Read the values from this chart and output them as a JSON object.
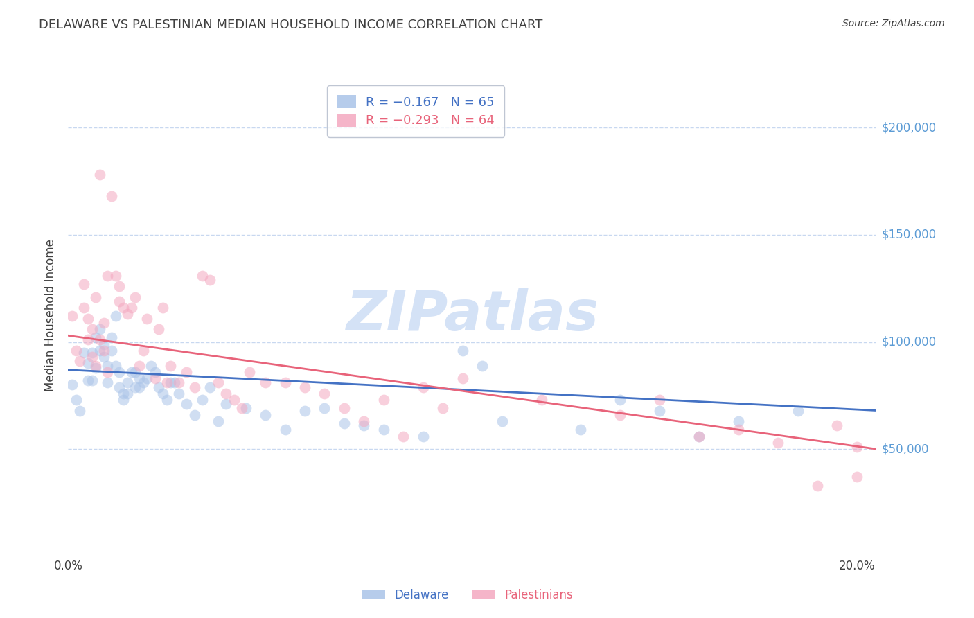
{
  "title": "DELAWARE VS PALESTINIAN MEDIAN HOUSEHOLD INCOME CORRELATION CHART",
  "source": "Source: ZipAtlas.com",
  "ylabel": "Median Household Income",
  "ytick_labels": [
    "$50,000",
    "$100,000",
    "$150,000",
    "$200,000"
  ],
  "ytick_values": [
    50000,
    100000,
    150000,
    200000
  ],
  "ylim": [
    0,
    225000
  ],
  "xlim": [
    0.0,
    0.205
  ],
  "legend_blue_R": "R = −0.167",
  "legend_blue_N": "N = 65",
  "legend_pink_R": "R = −0.293",
  "legend_pink_N": "N = 64",
  "blue_color": "#aac4e8",
  "pink_color": "#f4a8c0",
  "blue_line_color": "#4472c4",
  "pink_line_color": "#e8637a",
  "watermark_color": "#d0dff5",
  "title_color": "#404040",
  "ytick_color": "#5b9bd5",
  "xtick_color": "#404040",
  "blue_scatter": [
    [
      0.001,
      80000
    ],
    [
      0.002,
      73000
    ],
    [
      0.003,
      68000
    ],
    [
      0.004,
      95000
    ],
    [
      0.005,
      90000
    ],
    [
      0.005,
      82000
    ],
    [
      0.006,
      95000
    ],
    [
      0.006,
      82000
    ],
    [
      0.007,
      88000
    ],
    [
      0.007,
      102000
    ],
    [
      0.008,
      96000
    ],
    [
      0.008,
      106000
    ],
    [
      0.009,
      99000
    ],
    [
      0.009,
      93000
    ],
    [
      0.01,
      89000
    ],
    [
      0.01,
      81000
    ],
    [
      0.011,
      96000
    ],
    [
      0.011,
      102000
    ],
    [
      0.012,
      112000
    ],
    [
      0.012,
      89000
    ],
    [
      0.013,
      79000
    ],
    [
      0.013,
      86000
    ],
    [
      0.014,
      76000
    ],
    [
      0.014,
      73000
    ],
    [
      0.015,
      81000
    ],
    [
      0.015,
      76000
    ],
    [
      0.016,
      86000
    ],
    [
      0.017,
      86000
    ],
    [
      0.017,
      79000
    ],
    [
      0.018,
      83000
    ],
    [
      0.018,
      79000
    ],
    [
      0.019,
      81000
    ],
    [
      0.02,
      83000
    ],
    [
      0.021,
      89000
    ],
    [
      0.022,
      86000
    ],
    [
      0.023,
      79000
    ],
    [
      0.024,
      76000
    ],
    [
      0.025,
      73000
    ],
    [
      0.026,
      81000
    ],
    [
      0.027,
      81000
    ],
    [
      0.028,
      76000
    ],
    [
      0.03,
      71000
    ],
    [
      0.032,
      66000
    ],
    [
      0.034,
      73000
    ],
    [
      0.036,
      79000
    ],
    [
      0.038,
      63000
    ],
    [
      0.04,
      71000
    ],
    [
      0.045,
      69000
    ],
    [
      0.05,
      66000
    ],
    [
      0.055,
      59000
    ],
    [
      0.06,
      68000
    ],
    [
      0.065,
      69000
    ],
    [
      0.07,
      62000
    ],
    [
      0.075,
      61000
    ],
    [
      0.08,
      59000
    ],
    [
      0.09,
      56000
    ],
    [
      0.1,
      96000
    ],
    [
      0.105,
      89000
    ],
    [
      0.11,
      63000
    ],
    [
      0.13,
      59000
    ],
    [
      0.14,
      73000
    ],
    [
      0.15,
      68000
    ],
    [
      0.16,
      56000
    ],
    [
      0.17,
      63000
    ],
    [
      0.185,
      68000
    ]
  ],
  "pink_scatter": [
    [
      0.001,
      112000
    ],
    [
      0.002,
      96000
    ],
    [
      0.003,
      91000
    ],
    [
      0.004,
      116000
    ],
    [
      0.004,
      127000
    ],
    [
      0.005,
      101000
    ],
    [
      0.005,
      111000
    ],
    [
      0.006,
      93000
    ],
    [
      0.006,
      106000
    ],
    [
      0.007,
      89000
    ],
    [
      0.007,
      121000
    ],
    [
      0.008,
      178000
    ],
    [
      0.008,
      101000
    ],
    [
      0.009,
      96000
    ],
    [
      0.009,
      109000
    ],
    [
      0.01,
      86000
    ],
    [
      0.01,
      131000
    ],
    [
      0.011,
      168000
    ],
    [
      0.012,
      131000
    ],
    [
      0.013,
      126000
    ],
    [
      0.013,
      119000
    ],
    [
      0.014,
      116000
    ],
    [
      0.015,
      113000
    ],
    [
      0.016,
      116000
    ],
    [
      0.017,
      121000
    ],
    [
      0.018,
      89000
    ],
    [
      0.019,
      96000
    ],
    [
      0.02,
      111000
    ],
    [
      0.022,
      83000
    ],
    [
      0.023,
      106000
    ],
    [
      0.024,
      116000
    ],
    [
      0.025,
      81000
    ],
    [
      0.026,
      89000
    ],
    [
      0.028,
      81000
    ],
    [
      0.03,
      86000
    ],
    [
      0.032,
      79000
    ],
    [
      0.034,
      131000
    ],
    [
      0.036,
      129000
    ],
    [
      0.038,
      81000
    ],
    [
      0.04,
      76000
    ],
    [
      0.042,
      73000
    ],
    [
      0.044,
      69000
    ],
    [
      0.046,
      86000
    ],
    [
      0.05,
      81000
    ],
    [
      0.055,
      81000
    ],
    [
      0.06,
      79000
    ],
    [
      0.065,
      76000
    ],
    [
      0.07,
      69000
    ],
    [
      0.075,
      63000
    ],
    [
      0.08,
      73000
    ],
    [
      0.085,
      56000
    ],
    [
      0.09,
      79000
    ],
    [
      0.095,
      69000
    ],
    [
      0.1,
      83000
    ],
    [
      0.12,
      73000
    ],
    [
      0.14,
      66000
    ],
    [
      0.15,
      73000
    ],
    [
      0.16,
      56000
    ],
    [
      0.17,
      59000
    ],
    [
      0.18,
      53000
    ],
    [
      0.19,
      33000
    ],
    [
      0.195,
      61000
    ],
    [
      0.2,
      51000
    ],
    [
      0.2,
      37000
    ]
  ],
  "blue_line_x": [
    0.0,
    0.205
  ],
  "blue_line_y": [
    87000,
    68000
  ],
  "pink_line_x": [
    0.0,
    0.205
  ],
  "pink_line_y": [
    103000,
    50000
  ],
  "background_color": "#ffffff",
  "grid_color": "#c8d8f0",
  "marker_size": 130,
  "marker_alpha": 0.55,
  "line_width": 2.0
}
